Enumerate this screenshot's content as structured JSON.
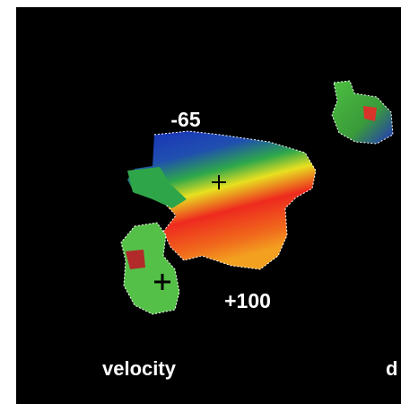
{
  "figure": {
    "labels": {
      "min_velocity": "-65",
      "max_velocity": "+100"
    },
    "captions": [
      "velocity",
      "d"
    ]
  }
}
